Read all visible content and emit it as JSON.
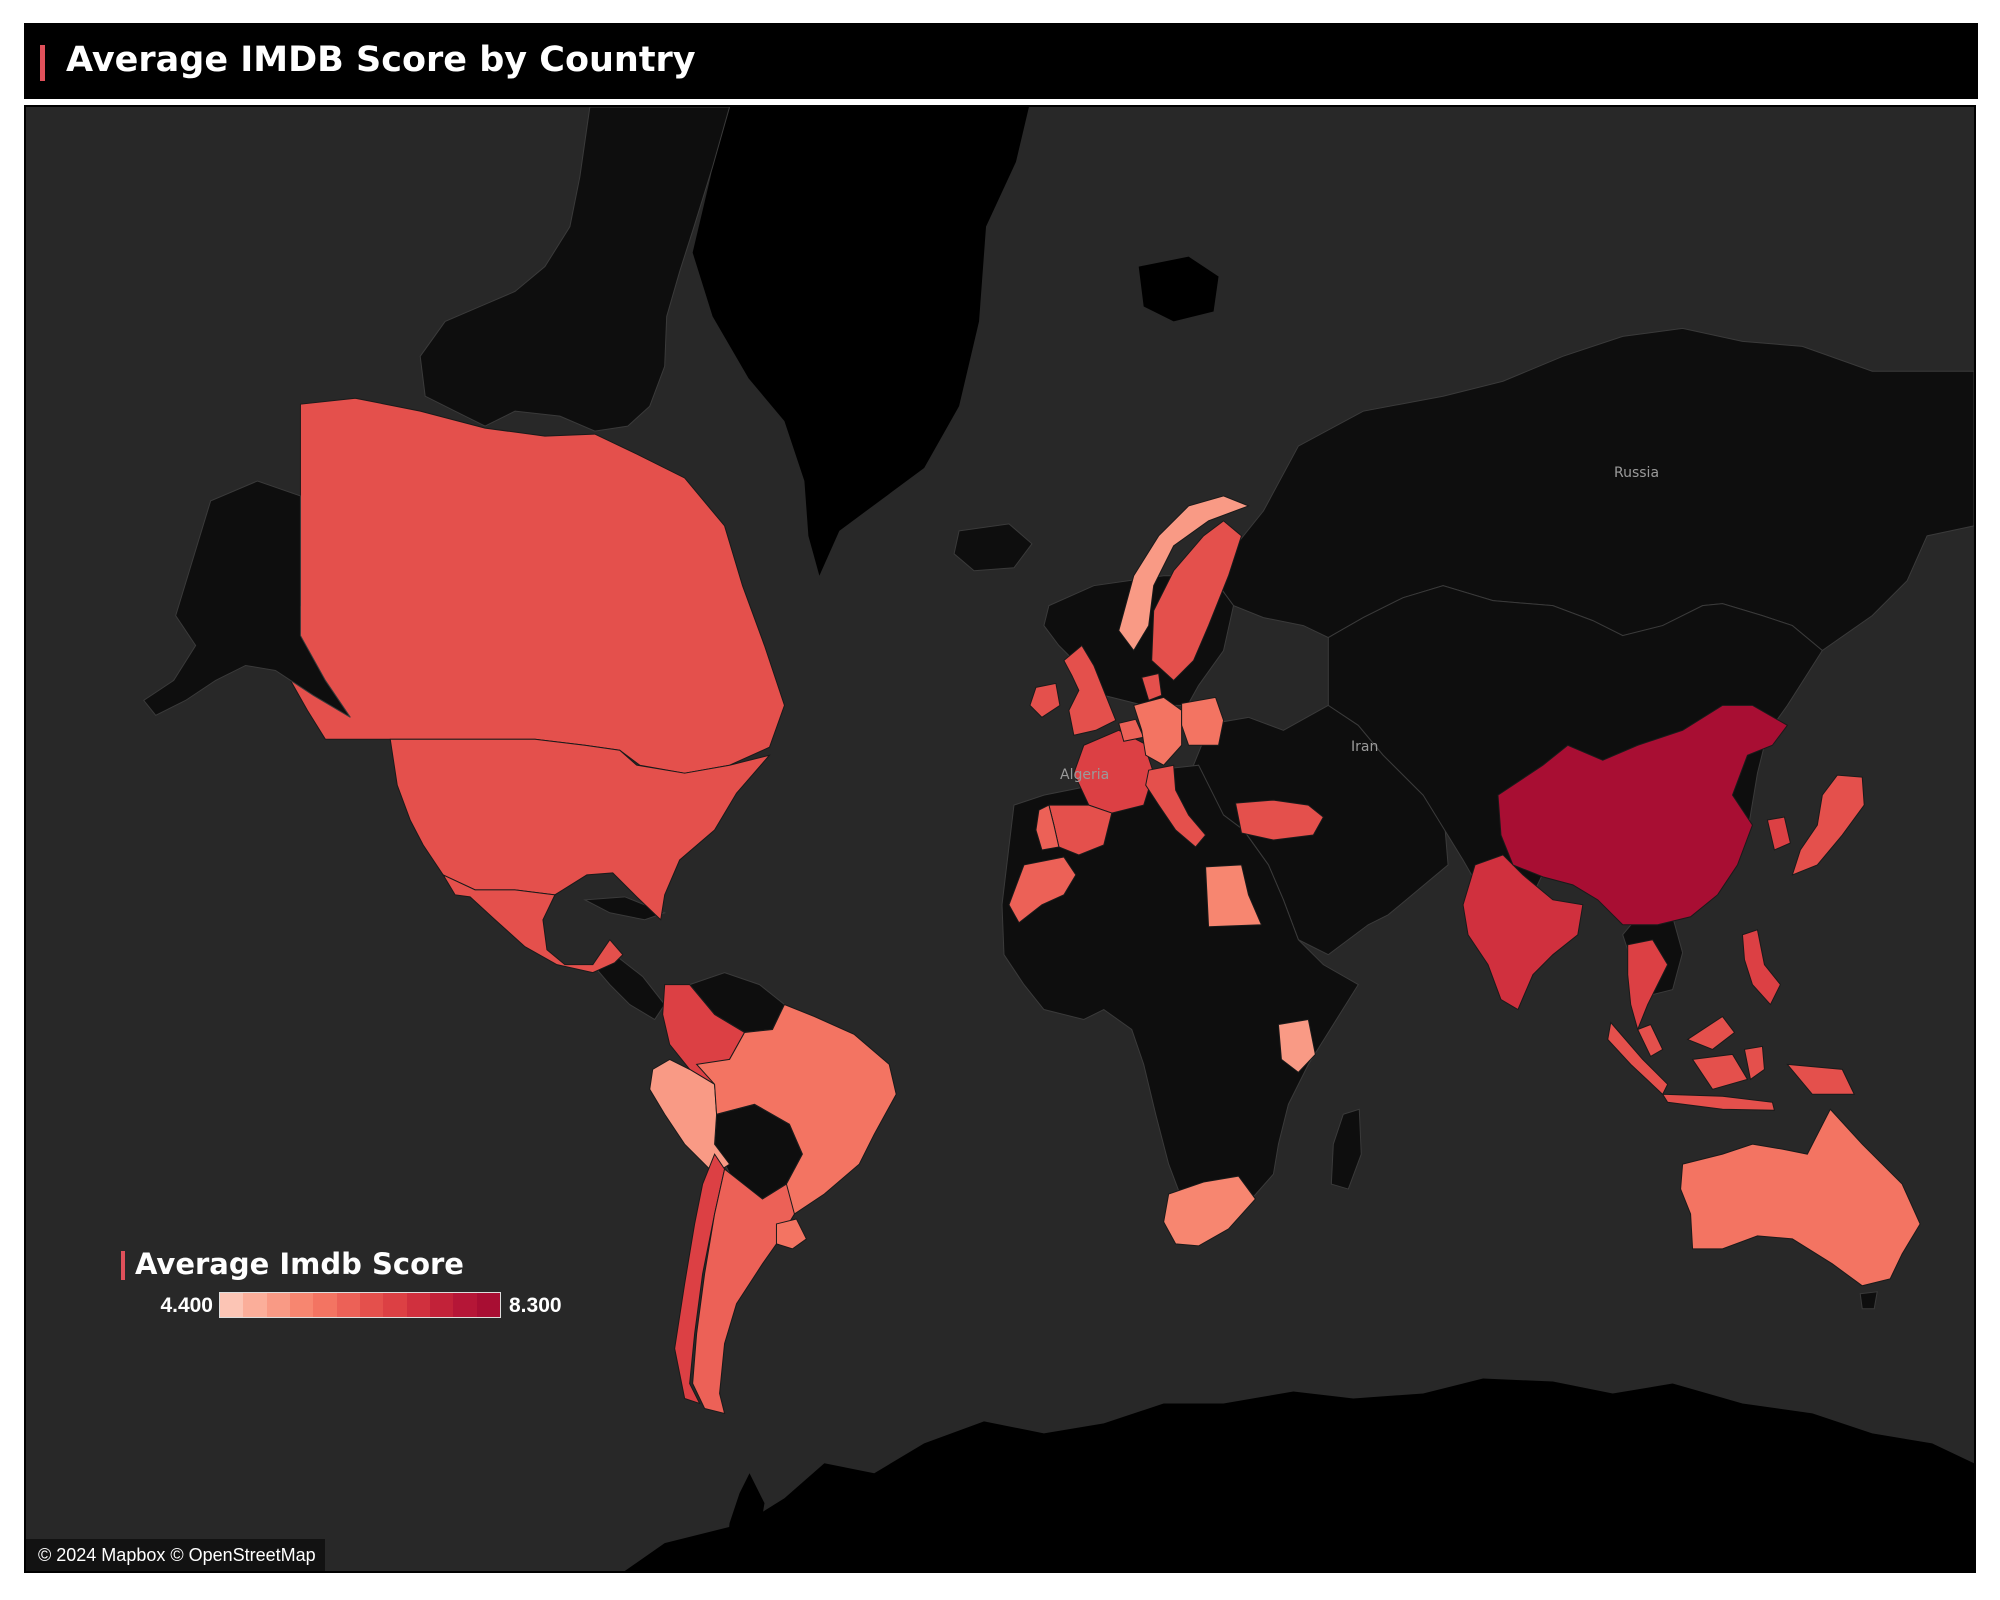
{
  "header": {
    "title": "Average IMDB Score by Country"
  },
  "map": {
    "type": "choropleth",
    "projection": "mercator",
    "basemap": "dark",
    "colors": {
      "ocean": "#282828",
      "no_data_land": "#0e0e0e",
      "ice": "#000000",
      "border": "#3a3a3a",
      "accent": "#e0505a"
    },
    "place_labels": [
      "Russia",
      "Algeria",
      "Iran"
    ],
    "legend": {
      "title": "Average Imdb Score",
      "min_label": "4.400",
      "max_label": "8.300",
      "min_value": 4.4,
      "max_value": 8.3,
      "colors": [
        "#fcc5b5",
        "#fbae9a",
        "#f99a85",
        "#f78670",
        "#f37462",
        "#ec6157",
        "#e4504c",
        "#dc4044",
        "#d0303e",
        "#c22239",
        "#b51637",
        "#a80e33"
      ]
    },
    "attribution": "© 2024 Mapbox © OpenStreetMap"
  },
  "chart_data": {
    "type": "choropleth",
    "title": "Average IMDB Score by Country",
    "legend_title": "Average Imdb Score",
    "value_range": [
      4.4,
      8.3
    ],
    "regions": [
      {
        "name": "Canada",
        "value": 6.7
      },
      {
        "name": "United States",
        "value": 6.4
      },
      {
        "name": "Mexico",
        "value": 6.5
      },
      {
        "name": "Colombia",
        "value": 7.0
      },
      {
        "name": "Peru",
        "value": 5.2
      },
      {
        "name": "Brazil",
        "value": 5.8
      },
      {
        "name": "Chile",
        "value": 6.8
      },
      {
        "name": "Argentina",
        "value": 6.3
      },
      {
        "name": "Uruguay",
        "value": 5.9
      },
      {
        "name": "United Kingdom",
        "value": 6.7
      },
      {
        "name": "Ireland",
        "value": 6.7
      },
      {
        "name": "France",
        "value": 6.8
      },
      {
        "name": "Spain",
        "value": 6.4
      },
      {
        "name": "Portugal",
        "value": 6.3
      },
      {
        "name": "Germany",
        "value": 5.9
      },
      {
        "name": "Poland",
        "value": 5.7
      },
      {
        "name": "Italy",
        "value": 6.6
      },
      {
        "name": "Belgium",
        "value": 6.3
      },
      {
        "name": "Norway",
        "value": 5.2
      },
      {
        "name": "Sweden",
        "value": 6.7
      },
      {
        "name": "Denmark",
        "value": 6.5
      },
      {
        "name": "Turkey",
        "value": 6.6
      },
      {
        "name": "Egypt",
        "value": 5.3
      },
      {
        "name": "Morocco",
        "value": 6.1
      },
      {
        "name": "Kenya",
        "value": 5.0
      },
      {
        "name": "South Africa",
        "value": 5.3
      },
      {
        "name": "India",
        "value": 7.1
      },
      {
        "name": "China",
        "value": 8.3
      },
      {
        "name": "Thailand",
        "value": 6.8
      },
      {
        "name": "Malaysia",
        "value": 6.5
      },
      {
        "name": "Indonesia",
        "value": 6.6
      },
      {
        "name": "Philippines",
        "value": 6.9
      },
      {
        "name": "South Korea",
        "value": 6.8
      },
      {
        "name": "Japan",
        "value": 6.7
      },
      {
        "name": "Australia",
        "value": 5.8
      }
    ]
  }
}
